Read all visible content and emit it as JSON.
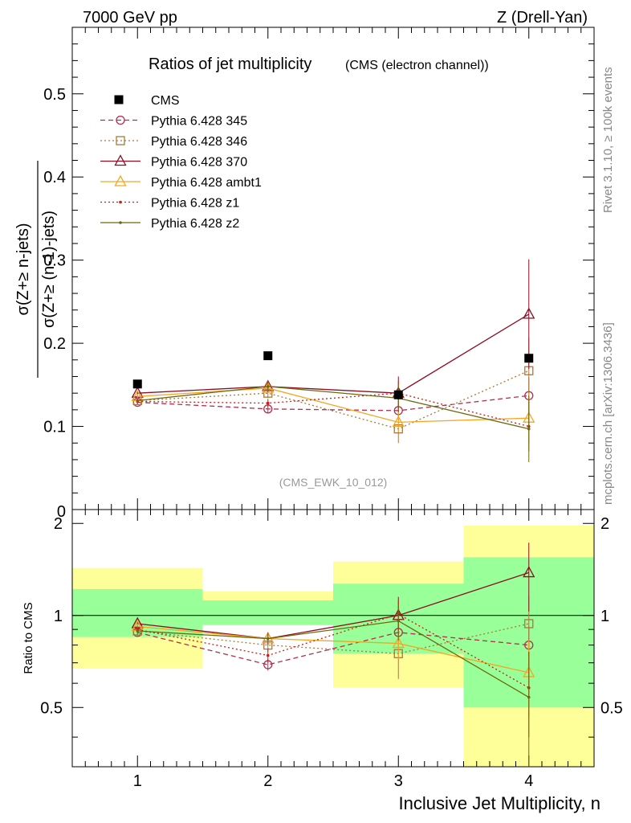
{
  "header": {
    "left": "7000 GeV pp",
    "right": "Z (Drell-Yan)"
  },
  "side_labels": {
    "rivet": "Rivet 3.1.10, ≥ 100k events",
    "mcplots": "mcplots.cern.ch [arXiv:1306.3436]"
  },
  "chart_data": {
    "type": "line",
    "title": "Ratios of jet multiplicity",
    "subtitle": "(CMS (electron channel))",
    "watermark": "(CMS_EWK_10_012)",
    "xlabel": "Inclusive Jet Multiplicity, n",
    "ylabel_num": "σ(Z+≥ n-jets)",
    "ylabel_den": "σ(Z+≥ (n-1)-jets)",
    "ratio_ylabel": "Ratio to CMS",
    "x": [
      1,
      2,
      3,
      4
    ],
    "xlim": [
      0.5,
      4.5
    ],
    "ylim": [
      0,
      0.58
    ],
    "ratio_ylim": [
      0.32,
      2.22
    ],
    "x_ticks": [
      "1",
      "2",
      "3",
      "4"
    ],
    "y_ticks": [
      "0.1",
      "0.2",
      "0.3",
      "0.4",
      "0.5"
    ],
    "y_zero_label": "0",
    "ratio_ticks": [
      "0.5",
      "1",
      "2"
    ],
    "data": {
      "name": "CMS",
      "color": "#000000",
      "values": [
        0.151,
        0.185,
        0.138,
        0.182
      ]
    },
    "bands": [
      {
        "x0": 0.5,
        "x1": 1.5,
        "green": [
          0.85,
          1.22
        ],
        "yellow": [
          0.67,
          1.43
        ]
      },
      {
        "x0": 1.5,
        "x1": 2.5,
        "green": [
          0.93,
          1.12
        ],
        "yellow": [
          0.93,
          1.2
        ]
      },
      {
        "x0": 2.5,
        "x1": 3.5,
        "green": [
          0.75,
          1.27
        ],
        "yellow": [
          0.58,
          1.5
        ]
      },
      {
        "x0": 3.5,
        "x1": 4.5,
        "green": [
          0.5,
          1.55
        ],
        "yellow": [
          0.32,
          1.97
        ]
      }
    ],
    "series": [
      {
        "name": "Pythia 6.428 345",
        "color": "#b22d4e",
        "dash": "6,4",
        "marker": "circle",
        "values": [
          0.129,
          0.121,
          0.119,
          0.137
        ],
        "errors": [
          0.003,
          0.005,
          0.008,
          0.022
        ],
        "ratio": [
          0.88,
          0.69,
          0.88,
          0.8
        ],
        "ratio_err": [
          0.02,
          0.03,
          0.06,
          0.12
        ]
      },
      {
        "name": "Pythia 6.428 346",
        "color": "#a8783d",
        "dash": "2,3",
        "marker": "square",
        "values": [
          0.131,
          0.14,
          0.097,
          0.167
        ],
        "errors": [
          0.003,
          0.006,
          0.017,
          0.04
        ],
        "ratio": [
          0.89,
          0.8,
          0.75,
          0.94
        ],
        "ratio_err": [
          0.02,
          0.04,
          0.13,
          0.22
        ]
      },
      {
        "name": "Pythia 6.428 370",
        "color": "#8b0e24",
        "dash": "",
        "marker": "triangle",
        "values": [
          0.14,
          0.148,
          0.14,
          0.235
        ],
        "errors": [
          0.003,
          0.006,
          0.02,
          0.066
        ],
        "ratio": [
          0.94,
          0.84,
          1.0,
          1.38
        ],
        "ratio_err": [
          0.02,
          0.04,
          0.15,
          0.35
        ]
      },
      {
        "name": "Pythia 6.428 ambt1",
        "color": "#f5a623",
        "dash": "",
        "marker": "triangle",
        "values": [
          0.136,
          0.146,
          0.105,
          0.11
        ],
        "errors": [
          0.003,
          0.006,
          0.012,
          0.03
        ],
        "ratio": [
          0.92,
          0.84,
          0.81,
          0.65
        ],
        "ratio_err": [
          0.02,
          0.04,
          0.09,
          0.18
        ]
      },
      {
        "name": "Pythia 6.428 z1",
        "color": "#cc1c14",
        "dash": "2,3",
        "marker": "dot",
        "values": [
          0.13,
          0.128,
          0.14,
          0.1
        ],
        "errors": [
          0.003,
          0.005,
          0.015,
          0.03
        ],
        "ratio": [
          0.9,
          0.74,
          1.01,
          0.58
        ],
        "ratio_err": [
          0.02,
          0.04,
          0.11,
          0.18
        ]
      },
      {
        "name": "Pythia 6.428 z2",
        "color": "#6b6b0e",
        "dash": "",
        "marker": "dot",
        "values": [
          0.131,
          0.148,
          0.134,
          0.097
        ],
        "errors": [
          0.003,
          0.007,
          0.017,
          0.04
        ],
        "ratio": [
          0.89,
          0.84,
          0.96,
          0.54
        ],
        "ratio_err": [
          0.02,
          0.04,
          0.13,
          0.22
        ]
      }
    ]
  }
}
